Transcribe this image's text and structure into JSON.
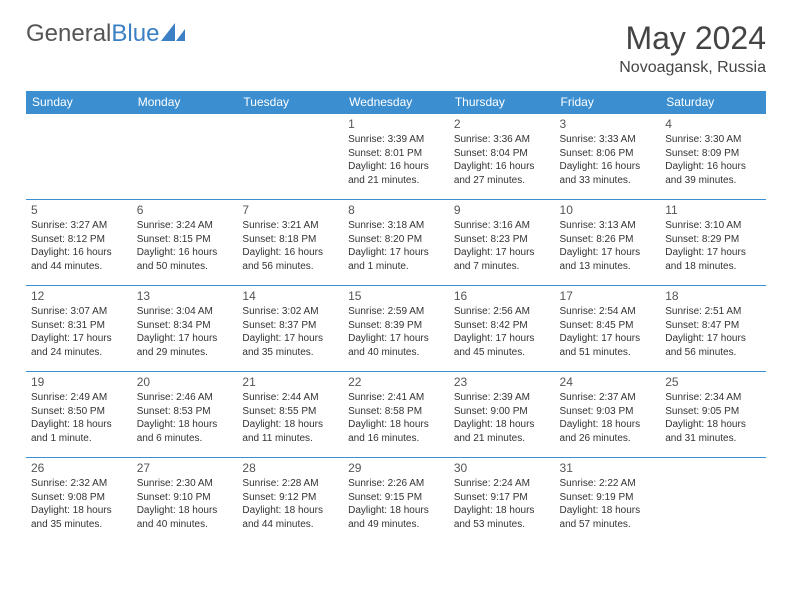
{
  "brand": {
    "part1": "General",
    "part2": "Blue"
  },
  "title": "May 2024",
  "location": "Novoagansk, Russia",
  "colors": {
    "header_bg": "#3b8ed0",
    "header_fg": "#ffffff",
    "border": "#3b8ed0",
    "text": "#333333",
    "brand_gray": "#555555",
    "brand_blue": "#3b7fc4"
  },
  "weekdays": [
    "Sunday",
    "Monday",
    "Tuesday",
    "Wednesday",
    "Thursday",
    "Friday",
    "Saturday"
  ],
  "weeks": [
    [
      null,
      null,
      null,
      {
        "n": "1",
        "sr": "3:39 AM",
        "ss": "8:01 PM",
        "dl": "16 hours and 21 minutes."
      },
      {
        "n": "2",
        "sr": "3:36 AM",
        "ss": "8:04 PM",
        "dl": "16 hours and 27 minutes."
      },
      {
        "n": "3",
        "sr": "3:33 AM",
        "ss": "8:06 PM",
        "dl": "16 hours and 33 minutes."
      },
      {
        "n": "4",
        "sr": "3:30 AM",
        "ss": "8:09 PM",
        "dl": "16 hours and 39 minutes."
      }
    ],
    [
      {
        "n": "5",
        "sr": "3:27 AM",
        "ss": "8:12 PM",
        "dl": "16 hours and 44 minutes."
      },
      {
        "n": "6",
        "sr": "3:24 AM",
        "ss": "8:15 PM",
        "dl": "16 hours and 50 minutes."
      },
      {
        "n": "7",
        "sr": "3:21 AM",
        "ss": "8:18 PM",
        "dl": "16 hours and 56 minutes."
      },
      {
        "n": "8",
        "sr": "3:18 AM",
        "ss": "8:20 PM",
        "dl": "17 hours and 1 minute."
      },
      {
        "n": "9",
        "sr": "3:16 AM",
        "ss": "8:23 PM",
        "dl": "17 hours and 7 minutes."
      },
      {
        "n": "10",
        "sr": "3:13 AM",
        "ss": "8:26 PM",
        "dl": "17 hours and 13 minutes."
      },
      {
        "n": "11",
        "sr": "3:10 AM",
        "ss": "8:29 PM",
        "dl": "17 hours and 18 minutes."
      }
    ],
    [
      {
        "n": "12",
        "sr": "3:07 AM",
        "ss": "8:31 PM",
        "dl": "17 hours and 24 minutes."
      },
      {
        "n": "13",
        "sr": "3:04 AM",
        "ss": "8:34 PM",
        "dl": "17 hours and 29 minutes."
      },
      {
        "n": "14",
        "sr": "3:02 AM",
        "ss": "8:37 PM",
        "dl": "17 hours and 35 minutes."
      },
      {
        "n": "15",
        "sr": "2:59 AM",
        "ss": "8:39 PM",
        "dl": "17 hours and 40 minutes."
      },
      {
        "n": "16",
        "sr": "2:56 AM",
        "ss": "8:42 PM",
        "dl": "17 hours and 45 minutes."
      },
      {
        "n": "17",
        "sr": "2:54 AM",
        "ss": "8:45 PM",
        "dl": "17 hours and 51 minutes."
      },
      {
        "n": "18",
        "sr": "2:51 AM",
        "ss": "8:47 PM",
        "dl": "17 hours and 56 minutes."
      }
    ],
    [
      {
        "n": "19",
        "sr": "2:49 AM",
        "ss": "8:50 PM",
        "dl": "18 hours and 1 minute."
      },
      {
        "n": "20",
        "sr": "2:46 AM",
        "ss": "8:53 PM",
        "dl": "18 hours and 6 minutes."
      },
      {
        "n": "21",
        "sr": "2:44 AM",
        "ss": "8:55 PM",
        "dl": "18 hours and 11 minutes."
      },
      {
        "n": "22",
        "sr": "2:41 AM",
        "ss": "8:58 PM",
        "dl": "18 hours and 16 minutes."
      },
      {
        "n": "23",
        "sr": "2:39 AM",
        "ss": "9:00 PM",
        "dl": "18 hours and 21 minutes."
      },
      {
        "n": "24",
        "sr": "2:37 AM",
        "ss": "9:03 PM",
        "dl": "18 hours and 26 minutes."
      },
      {
        "n": "25",
        "sr": "2:34 AM",
        "ss": "9:05 PM",
        "dl": "18 hours and 31 minutes."
      }
    ],
    [
      {
        "n": "26",
        "sr": "2:32 AM",
        "ss": "9:08 PM",
        "dl": "18 hours and 35 minutes."
      },
      {
        "n": "27",
        "sr": "2:30 AM",
        "ss": "9:10 PM",
        "dl": "18 hours and 40 minutes."
      },
      {
        "n": "28",
        "sr": "2:28 AM",
        "ss": "9:12 PM",
        "dl": "18 hours and 44 minutes."
      },
      {
        "n": "29",
        "sr": "2:26 AM",
        "ss": "9:15 PM",
        "dl": "18 hours and 49 minutes."
      },
      {
        "n": "30",
        "sr": "2:24 AM",
        "ss": "9:17 PM",
        "dl": "18 hours and 53 minutes."
      },
      {
        "n": "31",
        "sr": "2:22 AM",
        "ss": "9:19 PM",
        "dl": "18 hours and 57 minutes."
      },
      null
    ]
  ],
  "labels": {
    "sunrise": "Sunrise: ",
    "sunset": "Sunset: ",
    "daylight": "Daylight: "
  }
}
